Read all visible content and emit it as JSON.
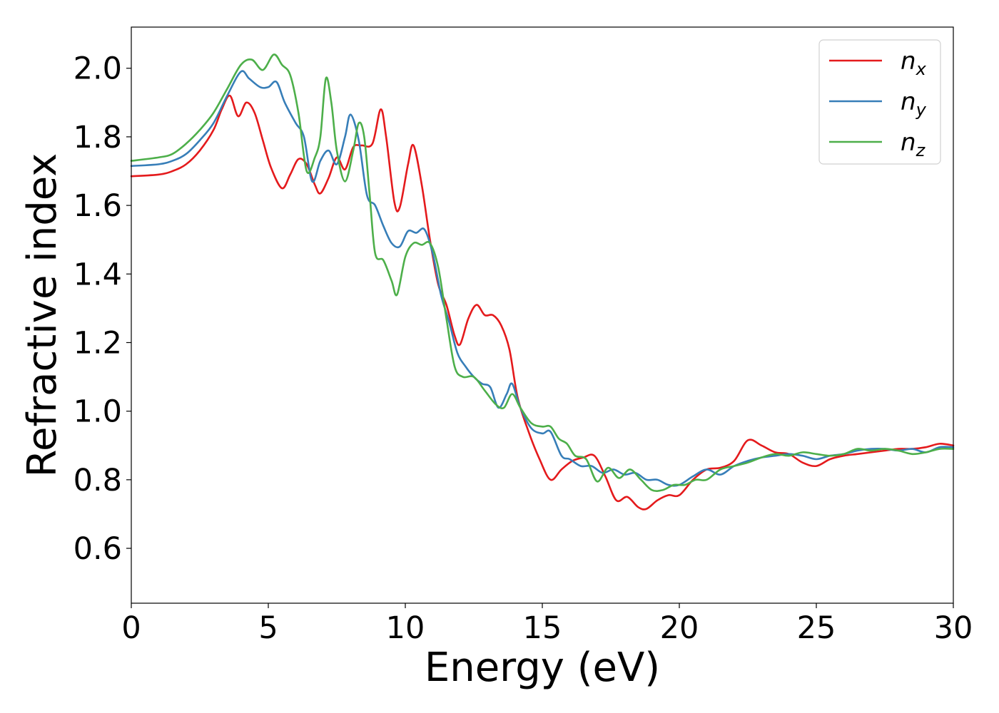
{
  "chart_data": {
    "type": "line",
    "title": "",
    "xlabel": "Energy (eV)",
    "ylabel": "Refractive index",
    "xlim": [
      0,
      30
    ],
    "ylim": [
      0.44,
      2.12
    ],
    "xticks": [
      0,
      5,
      10,
      15,
      20,
      25,
      30
    ],
    "xtick_labels": [
      "0",
      "5",
      "10",
      "15",
      "20",
      "25",
      "30"
    ],
    "yticks": [
      0.6,
      0.8,
      1.0,
      1.2,
      1.4,
      1.6,
      1.8,
      2.0
    ],
    "ytick_labels": [
      "0.6",
      "0.8",
      "1.0",
      "1.2",
      "1.4",
      "1.6",
      "1.8",
      "2.0"
    ],
    "grid": false,
    "legend_position": "top-right",
    "series": [
      {
        "name": "n_x",
        "legend_base": "n",
        "legend_sub": "x",
        "color": "#e41a1c",
        "points": [
          [
            0,
            1.685
          ],
          [
            1,
            1.69
          ],
          [
            1.5,
            1.7
          ],
          [
            2,
            1.72
          ],
          [
            2.5,
            1.76
          ],
          [
            3,
            1.82
          ],
          [
            3.3,
            1.88
          ],
          [
            3.6,
            1.92
          ],
          [
            3.9,
            1.86
          ],
          [
            4.2,
            1.9
          ],
          [
            4.5,
            1.87
          ],
          [
            4.8,
            1.79
          ],
          [
            5.1,
            1.71
          ],
          [
            5.5,
            1.65
          ],
          [
            5.8,
            1.69
          ],
          [
            6.1,
            1.735
          ],
          [
            6.4,
            1.72
          ],
          [
            6.7,
            1.66
          ],
          [
            6.9,
            1.635
          ],
          [
            7.2,
            1.68
          ],
          [
            7.5,
            1.74
          ],
          [
            7.8,
            1.705
          ],
          [
            8.1,
            1.77
          ],
          [
            8.4,
            1.775
          ],
          [
            8.8,
            1.78
          ],
          [
            9.1,
            1.88
          ],
          [
            9.3,
            1.8
          ],
          [
            9.6,
            1.61
          ],
          [
            9.8,
            1.595
          ],
          [
            10.1,
            1.72
          ],
          [
            10.3,
            1.775
          ],
          [
            10.6,
            1.66
          ],
          [
            10.9,
            1.5
          ],
          [
            11.2,
            1.37
          ],
          [
            11.5,
            1.31
          ],
          [
            11.8,
            1.22
          ],
          [
            12.0,
            1.195
          ],
          [
            12.3,
            1.27
          ],
          [
            12.6,
            1.31
          ],
          [
            12.9,
            1.28
          ],
          [
            13.2,
            1.28
          ],
          [
            13.5,
            1.25
          ],
          [
            13.8,
            1.18
          ],
          [
            14.1,
            1.04
          ],
          [
            14.5,
            0.94
          ],
          [
            14.9,
            0.86
          ],
          [
            15.3,
            0.8
          ],
          [
            15.7,
            0.83
          ],
          [
            16.1,
            0.855
          ],
          [
            16.5,
            0.865
          ],
          [
            16.9,
            0.87
          ],
          [
            17.3,
            0.81
          ],
          [
            17.7,
            0.74
          ],
          [
            18.1,
            0.75
          ],
          [
            18.5,
            0.72
          ],
          [
            18.8,
            0.715
          ],
          [
            19.2,
            0.74
          ],
          [
            19.6,
            0.755
          ],
          [
            20.0,
            0.755
          ],
          [
            20.5,
            0.8
          ],
          [
            21.0,
            0.83
          ],
          [
            21.5,
            0.835
          ],
          [
            22.0,
            0.855
          ],
          [
            22.5,
            0.915
          ],
          [
            23.0,
            0.9
          ],
          [
            23.5,
            0.88
          ],
          [
            24.0,
            0.875
          ],
          [
            24.5,
            0.85
          ],
          [
            25.0,
            0.84
          ],
          [
            25.5,
            0.86
          ],
          [
            26.0,
            0.87
          ],
          [
            26.5,
            0.875
          ],
          [
            27.0,
            0.88
          ],
          [
            27.5,
            0.885
          ],
          [
            28.0,
            0.89
          ],
          [
            28.5,
            0.89
          ],
          [
            29.0,
            0.895
          ],
          [
            29.5,
            0.905
          ],
          [
            30,
            0.9
          ]
        ]
      },
      {
        "name": "n_y",
        "legend_base": "n",
        "legend_sub": "y",
        "color": "#377eb8",
        "points": [
          [
            0,
            1.715
          ],
          [
            1,
            1.72
          ],
          [
            1.5,
            1.73
          ],
          [
            2,
            1.75
          ],
          [
            2.5,
            1.79
          ],
          [
            3,
            1.84
          ],
          [
            3.5,
            1.92
          ],
          [
            4.0,
            1.99
          ],
          [
            4.3,
            1.97
          ],
          [
            4.7,
            1.945
          ],
          [
            5.0,
            1.945
          ],
          [
            5.3,
            1.96
          ],
          [
            5.6,
            1.9
          ],
          [
            6.0,
            1.84
          ],
          [
            6.3,
            1.8
          ],
          [
            6.6,
            1.67
          ],
          [
            6.9,
            1.73
          ],
          [
            7.2,
            1.76
          ],
          [
            7.5,
            1.72
          ],
          [
            7.8,
            1.8
          ],
          [
            8.0,
            1.865
          ],
          [
            8.3,
            1.79
          ],
          [
            8.6,
            1.63
          ],
          [
            8.9,
            1.6
          ],
          [
            9.2,
            1.54
          ],
          [
            9.5,
            1.49
          ],
          [
            9.8,
            1.48
          ],
          [
            10.1,
            1.525
          ],
          [
            10.4,
            1.52
          ],
          [
            10.7,
            1.53
          ],
          [
            11.0,
            1.46
          ],
          [
            11.3,
            1.34
          ],
          [
            11.6,
            1.26
          ],
          [
            11.9,
            1.17
          ],
          [
            12.2,
            1.13
          ],
          [
            12.5,
            1.1
          ],
          [
            12.8,
            1.08
          ],
          [
            13.1,
            1.07
          ],
          [
            13.4,
            1.01
          ],
          [
            13.7,
            1.05
          ],
          [
            13.9,
            1.08
          ],
          [
            14.2,
            1.01
          ],
          [
            14.6,
            0.95
          ],
          [
            15.0,
            0.935
          ],
          [
            15.3,
            0.94
          ],
          [
            15.7,
            0.87
          ],
          [
            16.0,
            0.86
          ],
          [
            16.4,
            0.84
          ],
          [
            16.8,
            0.84
          ],
          [
            17.2,
            0.82
          ],
          [
            17.6,
            0.83
          ],
          [
            18.0,
            0.815
          ],
          [
            18.4,
            0.82
          ],
          [
            18.8,
            0.8
          ],
          [
            19.2,
            0.8
          ],
          [
            19.6,
            0.785
          ],
          [
            20.0,
            0.785
          ],
          [
            20.5,
            0.81
          ],
          [
            21.0,
            0.83
          ],
          [
            21.5,
            0.815
          ],
          [
            22.0,
            0.84
          ],
          [
            22.5,
            0.855
          ],
          [
            23.0,
            0.865
          ],
          [
            23.5,
            0.87
          ],
          [
            24.0,
            0.875
          ],
          [
            24.5,
            0.87
          ],
          [
            25.0,
            0.86
          ],
          [
            25.5,
            0.87
          ],
          [
            26.0,
            0.875
          ],
          [
            26.5,
            0.885
          ],
          [
            27.0,
            0.89
          ],
          [
            27.5,
            0.89
          ],
          [
            28.0,
            0.885
          ],
          [
            28.5,
            0.89
          ],
          [
            29.0,
            0.88
          ],
          [
            29.5,
            0.895
          ],
          [
            30,
            0.895
          ]
        ]
      },
      {
        "name": "n_z",
        "legend_base": "n",
        "legend_sub": "z",
        "color": "#4daf4a",
        "points": [
          [
            0,
            1.73
          ],
          [
            1,
            1.74
          ],
          [
            1.5,
            1.75
          ],
          [
            2,
            1.78
          ],
          [
            2.5,
            1.82
          ],
          [
            3,
            1.87
          ],
          [
            3.5,
            1.94
          ],
          [
            4.0,
            2.01
          ],
          [
            4.4,
            2.025
          ],
          [
            4.8,
            1.995
          ],
          [
            5.2,
            2.04
          ],
          [
            5.5,
            2.01
          ],
          [
            5.8,
            1.98
          ],
          [
            6.1,
            1.87
          ],
          [
            6.4,
            1.7
          ],
          [
            6.7,
            1.74
          ],
          [
            6.9,
            1.8
          ],
          [
            7.1,
            1.97
          ],
          [
            7.3,
            1.9
          ],
          [
            7.5,
            1.76
          ],
          [
            7.8,
            1.67
          ],
          [
            8.1,
            1.76
          ],
          [
            8.3,
            1.84
          ],
          [
            8.5,
            1.8
          ],
          [
            8.7,
            1.63
          ],
          [
            8.9,
            1.46
          ],
          [
            9.2,
            1.44
          ],
          [
            9.5,
            1.38
          ],
          [
            9.7,
            1.34
          ],
          [
            10.0,
            1.45
          ],
          [
            10.3,
            1.49
          ],
          [
            10.6,
            1.485
          ],
          [
            10.9,
            1.49
          ],
          [
            11.2,
            1.42
          ],
          [
            11.5,
            1.27
          ],
          [
            11.8,
            1.13
          ],
          [
            12.1,
            1.1
          ],
          [
            12.5,
            1.1
          ],
          [
            12.9,
            1.06
          ],
          [
            13.3,
            1.02
          ],
          [
            13.6,
            1.01
          ],
          [
            13.9,
            1.05
          ],
          [
            14.2,
            1.01
          ],
          [
            14.6,
            0.965
          ],
          [
            15.0,
            0.955
          ],
          [
            15.3,
            0.955
          ],
          [
            15.6,
            0.92
          ],
          [
            15.9,
            0.905
          ],
          [
            16.2,
            0.87
          ],
          [
            16.6,
            0.86
          ],
          [
            17.0,
            0.795
          ],
          [
            17.4,
            0.835
          ],
          [
            17.8,
            0.805
          ],
          [
            18.2,
            0.83
          ],
          [
            18.6,
            0.8
          ],
          [
            19.0,
            0.77
          ],
          [
            19.4,
            0.77
          ],
          [
            19.8,
            0.785
          ],
          [
            20.2,
            0.785
          ],
          [
            20.6,
            0.8
          ],
          [
            21.0,
            0.8
          ],
          [
            21.5,
            0.83
          ],
          [
            22.0,
            0.84
          ],
          [
            22.5,
            0.85
          ],
          [
            23.0,
            0.865
          ],
          [
            23.5,
            0.875
          ],
          [
            24.0,
            0.87
          ],
          [
            24.5,
            0.88
          ],
          [
            25.0,
            0.875
          ],
          [
            25.5,
            0.87
          ],
          [
            26.0,
            0.875
          ],
          [
            26.5,
            0.89
          ],
          [
            27.0,
            0.885
          ],
          [
            27.5,
            0.89
          ],
          [
            28.0,
            0.885
          ],
          [
            28.5,
            0.875
          ],
          [
            29.0,
            0.88
          ],
          [
            29.5,
            0.89
          ],
          [
            30,
            0.89
          ]
        ]
      }
    ]
  }
}
